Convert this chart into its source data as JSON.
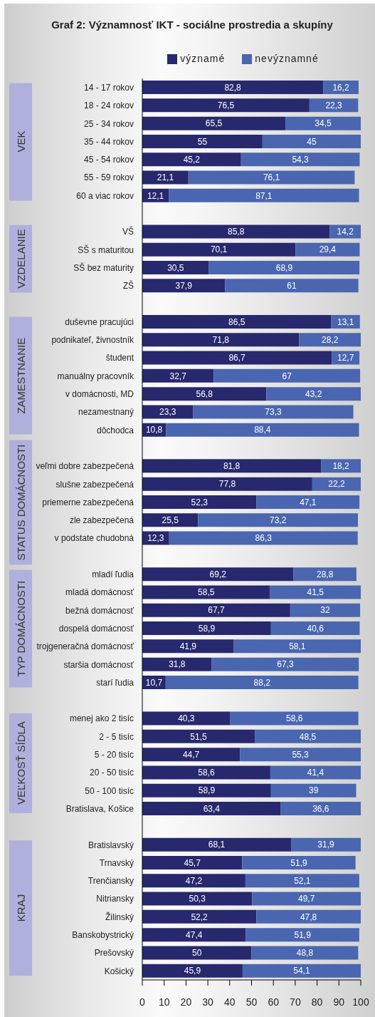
{
  "chart_data": {
    "type": "bar",
    "orientation": "horizontal",
    "stacked": true,
    "title": "Graf 2: Významnosť IKT - sociálne prostredia a skupíny",
    "categories": [
      "14 - 17 rokov",
      "18 - 24 rokov",
      "25 - 34 rokov",
      "35 - 44 rokov",
      "45 - 54 rokov",
      "55 - 59 rokov",
      "60 a viac rokov",
      null,
      "VŠ",
      "SŠ s maturitou",
      "SŠ bez maturity",
      "ZŠ",
      null,
      "duševne pracujúci",
      "podnikateľ, živnostník",
      "študent",
      "manuálny pracovník",
      "v domácnosti, MD",
      "nezamestnaný",
      "dôchodca",
      null,
      "veľmi dobre zabezpečená",
      "slušne zabezpečená",
      "priemerne zabezpečená",
      "zle zabezpečená",
      "v podstate chudobná",
      null,
      "mladí ľudia",
      "mladá domácnosť",
      "bežná domácnosť",
      "dospelá domácnosť",
      "trojgeneračná domácnosť",
      "staršia domácnosť",
      "starí ľudia",
      null,
      "menej ako 2 tisíc",
      "2 - 5 tisíc",
      "5 - 20 tisíc",
      "20 - 50 tisíc",
      "50 - 100 tisíc",
      "Bratislava, Košice",
      null,
      "Bratislavský",
      "Trnavský",
      "Trenčiansky",
      "Nitriansky",
      "Žilinský",
      "Banskobystrický",
      "Prešovský",
      "Košický"
    ],
    "series": [
      {
        "name": "významé",
        "color": "#28286e",
        "values": [
          82.8,
          76.5,
          65.5,
          55,
          45.2,
          21.1,
          12.1,
          null,
          85.8,
          70.1,
          30.5,
          37.9,
          null,
          86.5,
          71.8,
          86.7,
          32.7,
          56.8,
          23.3,
          10.8,
          null,
          81.8,
          77.8,
          52.3,
          25.5,
          12.3,
          null,
          69.2,
          58.5,
          67.7,
          58.9,
          41.9,
          31.8,
          10.7,
          null,
          40.3,
          51.5,
          44.7,
          58.6,
          58.9,
          63.4,
          null,
          68.1,
          45.7,
          47.2,
          50.3,
          52.2,
          47.4,
          50,
          45.9
        ],
        "value_labels": [
          "82,8",
          "76,5",
          "65,5",
          "55",
          "45,2",
          "21,1",
          "12,1",
          null,
          "85,8",
          "70,1",
          "30,5",
          "37,9",
          null,
          "86,5",
          "71,8",
          "86,7",
          "32,7",
          "56,8",
          "23,3",
          "10,8",
          null,
          "81,8",
          "77,8",
          "52,3",
          "25,5",
          "12,3",
          null,
          "69,2",
          "58,5",
          "67,7",
          "58,9",
          "41,9",
          "31,8",
          "10,7",
          null,
          "40,3",
          "51,5",
          "44,7",
          "58,6",
          "58,9",
          "63,4",
          null,
          "68,1",
          "45,7",
          "47,2",
          "50,3",
          "52,2",
          "47,4",
          "50",
          "45,9"
        ]
      },
      {
        "name": "nevýznamné",
        "color": "#4a66b0",
        "values": [
          16.2,
          22.3,
          34.5,
          45,
          54.3,
          76.1,
          87.1,
          null,
          14.2,
          29.4,
          68.9,
          61,
          null,
          13.1,
          28.2,
          12.7,
          67,
          43.2,
          73.3,
          88.4,
          null,
          18.2,
          22.2,
          47.1,
          73.2,
          86.3,
          null,
          28.8,
          41.5,
          32,
          40.6,
          58.1,
          67.3,
          88.2,
          null,
          58.6,
          48.5,
          55.3,
          41.4,
          39,
          36.6,
          null,
          31.9,
          51.9,
          52.1,
          49.7,
          47.8,
          51.9,
          48.8,
          54.1
        ],
        "value_labels": [
          "16,2",
          "22,3",
          "34,5",
          "45",
          "54,3",
          "76,1",
          "87,1",
          null,
          "14,2",
          "29,4",
          "68,9",
          "61",
          null,
          "13,1",
          "28,2",
          "12,7",
          "67",
          "43,2",
          "73,3",
          "88,4",
          null,
          "18,2",
          "22,2",
          "47,1",
          "73,2",
          "86,3",
          null,
          "28,8",
          "41,5",
          "32",
          "40,6",
          "58,1",
          "67,3",
          "88,2",
          null,
          "58,6",
          "48,5",
          "55,3",
          "41,4",
          "39",
          "36,6",
          null,
          "31,9",
          "51,9",
          "52,1",
          "49,7",
          "47,8",
          "51,9",
          "48,8",
          "54,1"
        ]
      }
    ],
    "xlim": [
      0,
      100
    ],
    "xticks": [
      0,
      10,
      20,
      30,
      40,
      50,
      60,
      70,
      80,
      90,
      100
    ],
    "legend": "top",
    "annotations": [
      "VEK",
      "VZDELANIE",
      "ZAMESTNANIE",
      "STATUS DOMÁCNOSTI",
      "TYP DOMÁCNOSTI",
      "VEĽKOSŤ SÍDLA",
      "KRAJ"
    ]
  }
}
